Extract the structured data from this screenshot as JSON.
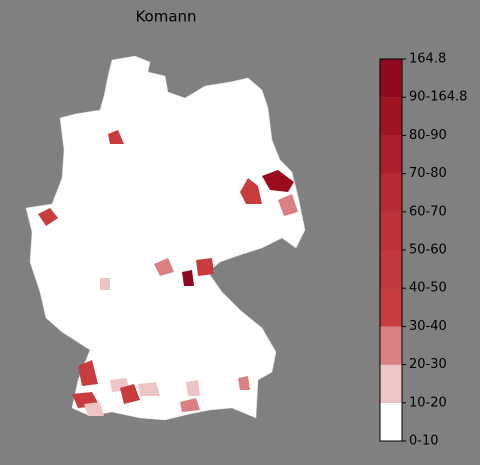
{
  "title": "Komann",
  "colorbar": {
    "labels": [
      "0-10",
      "10-20",
      "20-30",
      "30-40",
      "40-50",
      "50-60",
      "60-70",
      "70-80",
      "80-90",
      "90-164.8",
      "164.8"
    ],
    "colors": [
      "#ffffff",
      "#efc4c4",
      "#db8080",
      "#c83c3e",
      "#c2383b",
      "#bd3137",
      "#b72a32",
      "#ad202b",
      "#a01422",
      "#8f0a1e"
    ]
  }
}
